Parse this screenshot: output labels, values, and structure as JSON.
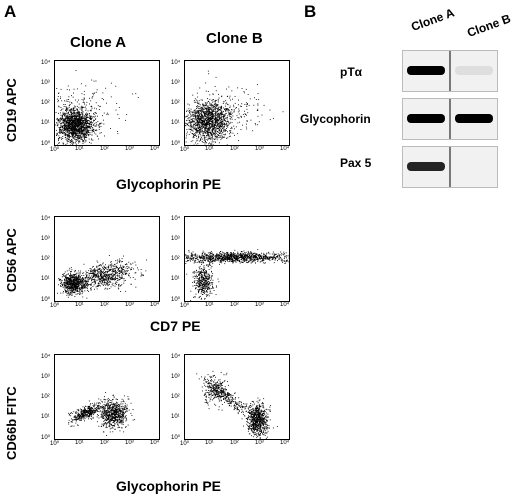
{
  "panel_a": {
    "letter": "A",
    "clone_titles": [
      "Clone A",
      "Clone B"
    ],
    "rows": [
      {
        "ylabel": "CD19 APC",
        "xlabel": "Glycophorin PE"
      },
      {
        "ylabel": "CD56 APC",
        "xlabel": "CD7 PE"
      },
      {
        "ylabel": "CD66b FITC",
        "xlabel": "Glycophorin PE"
      }
    ],
    "decade_ticks": [
      "10⁰",
      "10¹",
      "10²",
      "10³",
      "10⁴"
    ]
  },
  "panel_b": {
    "letter": "B",
    "columns": [
      "Clone A",
      "Clone B"
    ],
    "bands": [
      {
        "label": "pTα",
        "clone_a_intensity": 1.0,
        "clone_b_intensity": 0.08
      },
      {
        "label": "Glycophorin",
        "clone_a_intensity": 1.0,
        "clone_b_intensity": 1.0
      },
      {
        "label": "Pax 5",
        "clone_a_intensity": 0.85,
        "clone_b_intensity": 0.0
      }
    ]
  }
}
